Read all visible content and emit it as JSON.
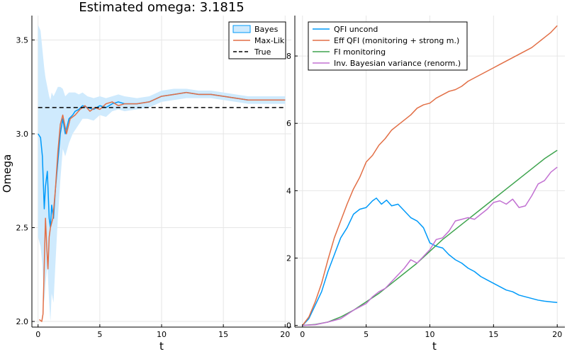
{
  "chart_data": [
    {
      "type": "line",
      "title": "Estimated omega: 3.1815",
      "xlabel": "t",
      "ylabel": "Omega",
      "xlim": [
        -0.5,
        20.5
      ],
      "ylim": [
        1.97,
        3.63
      ],
      "xticks": [
        0,
        5,
        10,
        15,
        20
      ],
      "yticks": [
        2.0,
        2.5,
        3.0,
        3.5
      ],
      "xtick_labels": [
        "0",
        "5",
        "10",
        "15",
        "20"
      ],
      "ytick_labels": [
        "2.0",
        "2.5",
        "3.0",
        "3.5"
      ],
      "grid": true,
      "legend_position": "top-right",
      "legend": [
        "Bayes",
        "Max-Lik",
        "True"
      ],
      "series": [
        {
          "name": "Bayes",
          "color": "#009af9",
          "band_color": "#cfeafd",
          "x": [
            0.0,
            0.2,
            0.35,
            0.5,
            0.6,
            0.75,
            0.9,
            1.0,
            1.1,
            1.25,
            1.4,
            1.6,
            1.8,
            2.0,
            2.2,
            2.5,
            2.8,
            3.0,
            3.3,
            3.6,
            4.0,
            4.5,
            5.0,
            5.5,
            6.0,
            6.5,
            7.0,
            8.0,
            9.0,
            10.0,
            11.0,
            12.0,
            13.0,
            14.0,
            15.0,
            16.0,
            17.0,
            18.0,
            19.0,
            20.0
          ],
          "y": [
            3.0,
            2.98,
            2.88,
            2.6,
            2.72,
            2.8,
            2.55,
            2.5,
            2.62,
            2.55,
            2.7,
            2.85,
            3.0,
            3.08,
            3.0,
            3.08,
            3.1,
            3.12,
            3.13,
            3.15,
            3.14,
            3.13,
            3.15,
            3.14,
            3.16,
            3.17,
            3.16,
            3.16,
            3.17,
            3.2,
            3.21,
            3.22,
            3.21,
            3.21,
            3.2,
            3.19,
            3.18,
            3.18,
            3.18,
            3.18
          ],
          "upper": [
            3.58,
            3.55,
            3.45,
            3.35,
            3.3,
            3.25,
            3.2,
            3.18,
            3.22,
            3.2,
            3.22,
            3.25,
            3.25,
            3.24,
            3.2,
            3.22,
            3.22,
            3.22,
            3.21,
            3.22,
            3.2,
            3.19,
            3.2,
            3.19,
            3.2,
            3.21,
            3.2,
            3.19,
            3.2,
            3.23,
            3.24,
            3.24,
            3.23,
            3.23,
            3.22,
            3.21,
            3.2,
            3.2,
            3.2,
            3.2
          ],
          "lower": [
            2.45,
            2.4,
            2.3,
            2.1,
            2.2,
            2.3,
            2.1,
            2.0,
            2.15,
            2.1,
            2.3,
            2.55,
            2.75,
            2.92,
            2.88,
            2.95,
            3.0,
            3.02,
            3.05,
            3.08,
            3.08,
            3.07,
            3.1,
            3.09,
            3.12,
            3.13,
            3.12,
            3.13,
            3.14,
            3.17,
            3.18,
            3.19,
            3.19,
            3.19,
            3.18,
            3.17,
            3.16,
            3.16,
            3.16,
            3.16
          ]
        },
        {
          "name": "Max-Lik",
          "color": "#e26f46",
          "x": [
            0.1,
            0.3,
            0.4,
            0.5,
            0.6,
            0.7,
            0.8,
            0.9,
            1.0,
            1.2,
            1.4,
            1.6,
            1.8,
            2.0,
            2.3,
            2.6,
            3.0,
            3.4,
            3.8,
            4.2,
            4.6,
            5.0,
            5.5,
            6.0,
            6.5,
            7.0,
            8.0,
            9.0,
            10.0,
            11.0,
            12.0,
            13.0,
            14.0,
            15.0,
            16.0,
            17.0,
            18.0,
            19.0,
            20.0
          ],
          "y": [
            2.01,
            2.0,
            2.04,
            2.3,
            2.55,
            2.4,
            2.28,
            2.45,
            2.5,
            2.55,
            2.7,
            2.9,
            3.05,
            3.1,
            3.0,
            3.08,
            3.1,
            3.13,
            3.15,
            3.12,
            3.14,
            3.13,
            3.16,
            3.17,
            3.15,
            3.16,
            3.16,
            3.17,
            3.2,
            3.21,
            3.22,
            3.21,
            3.21,
            3.2,
            3.19,
            3.18,
            3.18,
            3.18,
            3.18
          ]
        },
        {
          "name": "True",
          "color": "#000000",
          "dashed": true,
          "x": [
            0,
            20
          ],
          "y": [
            3.14,
            3.14
          ]
        }
      ]
    },
    {
      "type": "line",
      "title": "",
      "xlabel": "t",
      "ylabel": "",
      "xlim": [
        -0.6,
        20.6
      ],
      "ylim": [
        -0.05,
        9.2
      ],
      "xticks": [
        0,
        5,
        10,
        15,
        20
      ],
      "yticks": [
        0,
        2,
        4,
        6,
        8
      ],
      "xtick_labels": [
        "0",
        "5",
        "10",
        "15",
        "20"
      ],
      "ytick_labels": [
        "0",
        "2",
        "4",
        "6",
        "8"
      ],
      "grid": true,
      "legend_position": "top-left",
      "legend": [
        "QFI uncond",
        "Eff QFI (monitoring + strong m.)",
        "FI monitoring",
        "Inv. Bayesian variance (renorm.)"
      ],
      "series": [
        {
          "name": "QFI uncond",
          "color": "#009af9",
          "x": [
            0,
            0.5,
            1,
            1.5,
            2,
            2.5,
            3,
            3.5,
            4,
            4.5,
            5,
            5.5,
            5.8,
            6.2,
            6.6,
            7.0,
            7.5,
            8.0,
            8.5,
            9.0,
            9.5,
            10.0,
            10.5,
            11.0,
            11.5,
            12.0,
            12.5,
            13.0,
            13.5,
            14.0,
            14.5,
            15.0,
            15.5,
            16.0,
            16.5,
            17.0,
            17.5,
            18.0,
            18.5,
            19.0,
            19.5,
            20.0
          ],
          "y": [
            0,
            0.2,
            0.6,
            1.0,
            1.6,
            2.1,
            2.6,
            2.9,
            3.3,
            3.45,
            3.5,
            3.7,
            3.78,
            3.6,
            3.72,
            3.55,
            3.6,
            3.4,
            3.2,
            3.1,
            2.9,
            2.45,
            2.35,
            2.3,
            2.1,
            1.95,
            1.85,
            1.7,
            1.6,
            1.45,
            1.35,
            1.25,
            1.15,
            1.05,
            1.0,
            0.9,
            0.85,
            0.8,
            0.75,
            0.72,
            0.7,
            0.68
          ]
        },
        {
          "name": "Eff QFI (monitoring + strong m.)",
          "color": "#e26f46",
          "x": [
            0,
            0.5,
            1,
            1.5,
            2,
            2.5,
            3,
            3.5,
            4,
            4.5,
            5,
            5.5,
            6,
            6.5,
            7,
            7.5,
            8,
            8.5,
            9,
            9.5,
            10,
            10.5,
            11,
            11.5,
            12,
            12.5,
            13,
            13.5,
            14,
            14.5,
            15,
            15.5,
            16,
            16.5,
            17,
            17.5,
            18,
            18.5,
            19,
            19.5,
            20
          ],
          "y": [
            0,
            0.25,
            0.7,
            1.25,
            1.95,
            2.6,
            3.1,
            3.6,
            4.05,
            4.4,
            4.85,
            5.05,
            5.35,
            5.55,
            5.8,
            5.95,
            6.1,
            6.25,
            6.45,
            6.55,
            6.6,
            6.75,
            6.85,
            6.95,
            7.0,
            7.1,
            7.25,
            7.35,
            7.45,
            7.55,
            7.65,
            7.75,
            7.85,
            7.95,
            8.05,
            8.15,
            8.25,
            8.4,
            8.55,
            8.7,
            8.9
          ]
        },
        {
          "name": "FI monitoring",
          "color": "#3ea44e",
          "x": [
            0,
            1,
            2,
            3,
            4,
            5,
            6,
            7,
            8,
            9,
            10,
            11,
            12,
            13,
            14,
            15,
            16,
            17,
            18,
            19,
            20
          ],
          "y": [
            0,
            0.03,
            0.1,
            0.25,
            0.45,
            0.7,
            0.95,
            1.25,
            1.55,
            1.85,
            2.2,
            2.55,
            2.85,
            3.15,
            3.45,
            3.75,
            4.05,
            4.35,
            4.65,
            4.95,
            5.2
          ]
        },
        {
          "name": "Inv. Bayesian variance (renorm.)",
          "color": "#c271d2",
          "x": [
            0,
            1,
            2,
            3,
            4,
            5,
            5.5,
            6,
            6.5,
            7,
            7.5,
            8,
            8.5,
            9,
            9.5,
            10,
            10.5,
            11,
            11.5,
            12,
            12.5,
            13,
            13.5,
            14,
            14.5,
            15,
            15.5,
            16,
            16.5,
            17,
            17.5,
            18,
            18.5,
            19,
            19.5,
            20
          ],
          "y": [
            0,
            0.02,
            0.1,
            0.2,
            0.45,
            0.65,
            0.85,
            1.0,
            1.1,
            1.3,
            1.5,
            1.7,
            1.95,
            1.85,
            2.05,
            2.25,
            2.55,
            2.6,
            2.8,
            3.1,
            3.15,
            3.2,
            3.15,
            3.3,
            3.45,
            3.65,
            3.7,
            3.6,
            3.75,
            3.5,
            3.55,
            3.85,
            4.2,
            4.3,
            4.55,
            4.7
          ]
        }
      ]
    }
  ]
}
